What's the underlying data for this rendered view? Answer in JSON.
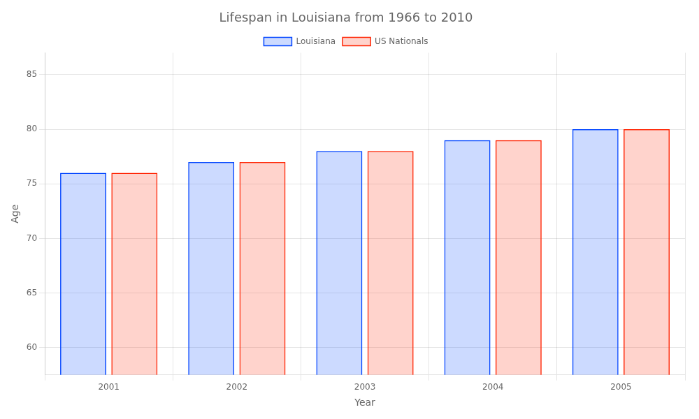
{
  "chart_data": {
    "type": "bar",
    "title": "Lifespan in Louisiana from 1966 to 2010",
    "xlabel": "Year",
    "ylabel": "Age",
    "categories": [
      "2001",
      "2002",
      "2003",
      "2004",
      "2005"
    ],
    "series": [
      {
        "name": "Louisiana",
        "color": "#0044ff",
        "values": [
          76,
          77,
          78,
          79,
          80
        ]
      },
      {
        "name": "US Nationals",
        "color": "#ff2200",
        "values": [
          76,
          77,
          78,
          79,
          80
        ]
      }
    ],
    "ylim": [
      57.5,
      87
    ],
    "yticks": [
      60,
      65,
      70,
      75,
      80,
      85
    ],
    "grid": true,
    "legend": "top"
  }
}
